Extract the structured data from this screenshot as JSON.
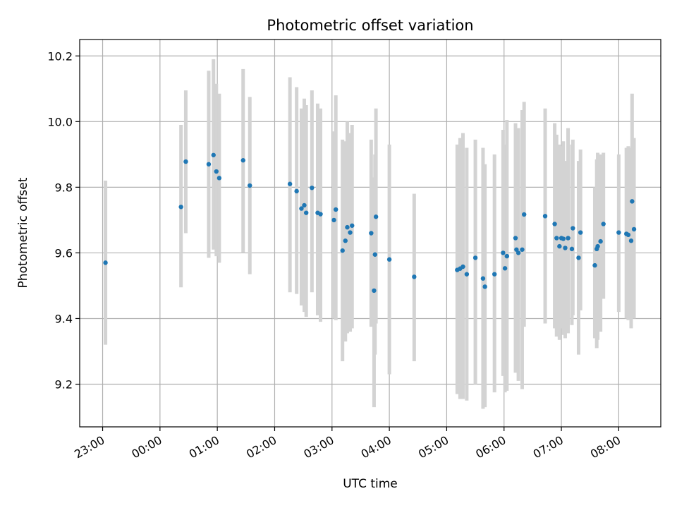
{
  "chart_data": {
    "type": "scatter",
    "title": "Photometric offset variation",
    "xlabel": "UTC time",
    "ylabel": "Photometric offset",
    "x_axis_kind": "time",
    "xlim": [
      "22:36",
      "08:44"
    ],
    "ylim": [
      9.07,
      10.25
    ],
    "x_ticks": [
      "23:00",
      "00:00",
      "01:00",
      "02:00",
      "03:00",
      "04:00",
      "05:00",
      "06:00",
      "07:00",
      "08:00"
    ],
    "y_ticks": [
      "9.2",
      "9.4",
      "9.6",
      "9.8",
      "10.0",
      "10.2"
    ],
    "y_tick_values": [
      9.2,
      9.4,
      9.6,
      9.8,
      10.0,
      10.2
    ],
    "grid": true,
    "legend": "none",
    "colors": {
      "point": "#1f77b4",
      "errorbar": "#d3d3d3"
    },
    "points": [
      {
        "x": "23:03",
        "y": 9.57,
        "err_low": 9.32,
        "err_high": 9.82
      },
      {
        "x": "00:22",
        "y": 9.74,
        "err_low": 9.495,
        "err_high": 9.99
      },
      {
        "x": "00:27",
        "y": 9.878,
        "err_low": 9.66,
        "err_high": 10.095
      },
      {
        "x": "00:51",
        "y": 9.87,
        "err_low": 9.585,
        "err_high": 10.155
      },
      {
        "x": "00:56",
        "y": 9.898,
        "err_low": 9.61,
        "err_high": 10.19
      },
      {
        "x": "00:59",
        "y": 9.848,
        "err_low": 9.59,
        "err_high": 10.115
      },
      {
        "x": "01:02",
        "y": 9.828,
        "err_low": 9.57,
        "err_high": 10.085
      },
      {
        "x": "01:27",
        "y": 9.882,
        "err_low": 9.6,
        "err_high": 10.16
      },
      {
        "x": "01:34",
        "y": 9.805,
        "err_low": 9.535,
        "err_high": 10.075
      },
      {
        "x": "02:16",
        "y": 9.81,
        "err_low": 9.48,
        "err_high": 10.135
      },
      {
        "x": "02:23",
        "y": 9.788,
        "err_low": 9.475,
        "err_high": 10.105
      },
      {
        "x": "02:28",
        "y": 9.735,
        "err_low": 9.44,
        "err_high": 10.04
      },
      {
        "x": "02:31",
        "y": 9.745,
        "err_low": 9.42,
        "err_high": 10.07
      },
      {
        "x": "02:33",
        "y": 9.722,
        "err_low": 9.405,
        "err_high": 10.05
      },
      {
        "x": "02:39",
        "y": 9.798,
        "err_low": 9.48,
        "err_high": 10.095
      },
      {
        "x": "02:45",
        "y": 9.722,
        "err_low": 9.41,
        "err_high": 10.055
      },
      {
        "x": "02:48",
        "y": 9.718,
        "err_low": 9.39,
        "err_high": 10.04
      },
      {
        "x": "03:02",
        "y": 9.7,
        "err_low": 9.4,
        "err_high": 9.97
      },
      {
        "x": "03:04",
        "y": 9.732,
        "err_low": 9.395,
        "err_high": 10.08
      },
      {
        "x": "03:11",
        "y": 9.607,
        "err_low": 9.27,
        "err_high": 9.945
      },
      {
        "x": "03:14",
        "y": 9.637,
        "err_low": 9.33,
        "err_high": 9.94
      },
      {
        "x": "03:16",
        "y": 9.678,
        "err_low": 9.355,
        "err_high": 10.0
      },
      {
        "x": "03:19",
        "y": 9.662,
        "err_low": 9.36,
        "err_high": 9.965
      },
      {
        "x": "03:21",
        "y": 9.683,
        "err_low": 9.37,
        "err_high": 9.99
      },
      {
        "x": "03:41",
        "y": 9.66,
        "err_low": 9.375,
        "err_high": 9.945
      },
      {
        "x": "03:44",
        "y": 9.485,
        "err_low": 9.13,
        "err_high": 9.83
      },
      {
        "x": "03:45",
        "y": 9.595,
        "err_low": 9.29,
        "err_high": 9.9
      },
      {
        "x": "03:46",
        "y": 9.71,
        "err_low": 9.385,
        "err_high": 10.04
      },
      {
        "x": "04:00",
        "y": 9.58,
        "err_low": 9.23,
        "err_high": 9.93
      },
      {
        "x": "04:26",
        "y": 9.527,
        "err_low": 9.27,
        "err_high": 9.78
      },
      {
        "x": "05:11",
        "y": 9.548,
        "err_low": 9.17,
        "err_high": 9.93
      },
      {
        "x": "05:14",
        "y": 9.552,
        "err_low": 9.155,
        "err_high": 9.95
      },
      {
        "x": "05:17",
        "y": 9.558,
        "err_low": 9.155,
        "err_high": 9.965
      },
      {
        "x": "05:21",
        "y": 9.535,
        "err_low": 9.15,
        "err_high": 9.92
      },
      {
        "x": "05:30",
        "y": 9.585,
        "err_low": 9.2,
        "err_high": 9.945
      },
      {
        "x": "05:38",
        "y": 9.522,
        "err_low": 9.125,
        "err_high": 9.92
      },
      {
        "x": "05:40",
        "y": 9.497,
        "err_low": 9.13,
        "err_high": 9.87
      },
      {
        "x": "05:50",
        "y": 9.535,
        "err_low": 9.175,
        "err_high": 9.9
      },
      {
        "x": "05:59",
        "y": 9.6,
        "err_low": 9.225,
        "err_high": 9.975
      },
      {
        "x": "06:01",
        "y": 9.553,
        "err_low": 9.175,
        "err_high": 9.93
      },
      {
        "x": "06:03",
        "y": 9.59,
        "err_low": 9.18,
        "err_high": 10.005
      },
      {
        "x": "06:12",
        "y": 9.645,
        "err_low": 9.235,
        "err_high": 9.995
      },
      {
        "x": "06:13",
        "y": 9.61,
        "err_low": 9.265,
        "err_high": 9.96
      },
      {
        "x": "06:15",
        "y": 9.6,
        "err_low": 9.21,
        "err_high": 9.98
      },
      {
        "x": "06:19",
        "y": 9.61,
        "err_low": 9.185,
        "err_high": 10.035
      },
      {
        "x": "06:21",
        "y": 9.717,
        "err_low": 9.375,
        "err_high": 10.06
      },
      {
        "x": "06:43",
        "y": 9.712,
        "err_low": 9.385,
        "err_high": 10.04
      },
      {
        "x": "06:53",
        "y": 9.688,
        "err_low": 9.37,
        "err_high": 9.995
      },
      {
        "x": "06:55",
        "y": 9.645,
        "err_low": 9.345,
        "err_high": 9.96
      },
      {
        "x": "06:58",
        "y": 9.62,
        "err_low": 9.335,
        "err_high": 9.93
      },
      {
        "x": "07:00",
        "y": 9.645,
        "err_low": 9.37,
        "err_high": 9.925
      },
      {
        "x": "07:02",
        "y": 9.643,
        "err_low": 9.35,
        "err_high": 9.94
      },
      {
        "x": "07:04",
        "y": 9.615,
        "err_low": 9.34,
        "err_high": 9.88
      },
      {
        "x": "07:07",
        "y": 9.645,
        "err_low": 9.355,
        "err_high": 9.98
      },
      {
        "x": "07:11",
        "y": 9.612,
        "err_low": 9.38,
        "err_high": 9.93
      },
      {
        "x": "07:12",
        "y": 9.675,
        "err_low": 9.41,
        "err_high": 9.945
      },
      {
        "x": "07:18",
        "y": 9.585,
        "err_low": 9.29,
        "err_high": 9.88
      },
      {
        "x": "07:20",
        "y": 9.662,
        "err_low": 9.425,
        "err_high": 9.915
      },
      {
        "x": "07:35",
        "y": 9.562,
        "err_low": 9.34,
        "err_high": 9.8
      },
      {
        "x": "07:37",
        "y": 9.612,
        "err_low": 9.31,
        "err_high": 9.885
      },
      {
        "x": "07:38",
        "y": 9.62,
        "err_low": 9.335,
        "err_high": 9.905
      },
      {
        "x": "07:41",
        "y": 9.635,
        "err_low": 9.36,
        "err_high": 9.9
      },
      {
        "x": "07:44",
        "y": 9.688,
        "err_low": 9.46,
        "err_high": 9.905
      },
      {
        "x": "08:00",
        "y": 9.662,
        "err_low": 9.42,
        "err_high": 9.9
      },
      {
        "x": "08:08",
        "y": 9.658,
        "err_low": 9.4,
        "err_high": 9.92
      },
      {
        "x": "08:10",
        "y": 9.655,
        "err_low": 9.395,
        "err_high": 9.925
      },
      {
        "x": "08:13",
        "y": 9.637,
        "err_low": 9.37,
        "err_high": 9.92
      },
      {
        "x": "08:14",
        "y": 9.757,
        "err_low": 9.4,
        "err_high": 10.085
      },
      {
        "x": "08:16",
        "y": 9.672,
        "err_low": 9.4,
        "err_high": 9.95
      }
    ]
  }
}
